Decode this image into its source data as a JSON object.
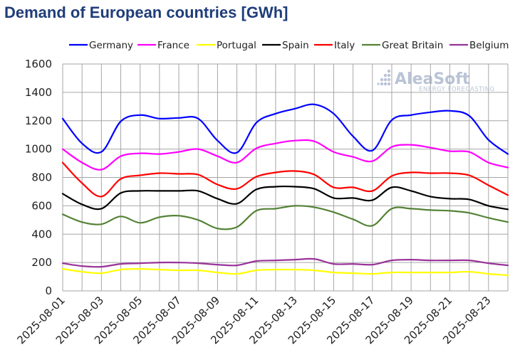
{
  "chart_data": {
    "type": "line",
    "title": "Demand of European countries [GWh]",
    "xlabel": "",
    "ylabel": "",
    "ylim": [
      0,
      1600
    ],
    "yticks": [
      "0",
      "200",
      "400",
      "600",
      "800",
      "1000",
      "1200",
      "1400",
      "1600"
    ],
    "xticks": [
      "2025-08-01",
      "2025-08-03",
      "2025-08-05",
      "2025-08-07",
      "2025-08-09",
      "2025-08-11",
      "2025-08-13",
      "2025-08-15",
      "2025-08-17",
      "2025-08-19",
      "2025-08-21",
      "2025-08-23"
    ],
    "x": [
      "2025-08-01",
      "2025-08-02",
      "2025-08-03",
      "2025-08-04",
      "2025-08-05",
      "2025-08-06",
      "2025-08-07",
      "2025-08-08",
      "2025-08-09",
      "2025-08-10",
      "2025-08-11",
      "2025-08-12",
      "2025-08-13",
      "2025-08-14",
      "2025-08-15",
      "2025-08-16",
      "2025-08-17",
      "2025-08-18",
      "2025-08-19",
      "2025-08-20",
      "2025-08-21",
      "2025-08-22",
      "2025-08-23",
      "2025-08-24"
    ],
    "grid": true,
    "legend_position": "top",
    "watermark": {
      "brand": "AleaSoft",
      "tagline": "ENERGY FORECASTING"
    },
    "series": [
      {
        "name": "Germany",
        "color": "#0000ff",
        "values": [
          1215,
          1040,
          980,
          1195,
          1240,
          1215,
          1220,
          1215,
          1060,
          975,
          1185,
          1250,
          1285,
          1315,
          1250,
          1090,
          990,
          1205,
          1240,
          1260,
          1270,
          1235,
          1065,
          965
        ]
      },
      {
        "name": "France",
        "color": "#ff00ff",
        "values": [
          1000,
          905,
          855,
          950,
          970,
          965,
          980,
          1000,
          950,
          905,
          1005,
          1040,
          1060,
          1055,
          980,
          945,
          915,
          1015,
          1030,
          1010,
          985,
          980,
          905,
          870
        ]
      },
      {
        "name": "Portugal",
        "color": "#ffff00",
        "values": [
          155,
          135,
          125,
          150,
          155,
          150,
          145,
          145,
          130,
          120,
          145,
          150,
          150,
          145,
          130,
          125,
          120,
          130,
          130,
          130,
          130,
          135,
          120,
          110
        ]
      },
      {
        "name": "Spain",
        "color": "#000000",
        "values": [
          685,
          610,
          580,
          690,
          705,
          705,
          705,
          705,
          650,
          615,
          715,
          735,
          735,
          720,
          655,
          655,
          640,
          730,
          705,
          665,
          650,
          645,
          600,
          575
        ]
      },
      {
        "name": "Italy",
        "color": "#ff0000",
        "values": [
          905,
          760,
          665,
          790,
          815,
          830,
          825,
          820,
          750,
          720,
          805,
          835,
          845,
          820,
          730,
          730,
          705,
          810,
          835,
          830,
          830,
          815,
          745,
          675
        ]
      },
      {
        "name": "Great Britain",
        "color": "#548235",
        "values": [
          540,
          485,
          470,
          525,
          480,
          520,
          530,
          500,
          440,
          450,
          565,
          580,
          600,
          590,
          555,
          505,
          460,
          580,
          580,
          570,
          565,
          550,
          515,
          485
        ]
      },
      {
        "name": "Belgium",
        "color": "#993399",
        "values": [
          195,
          175,
          170,
          190,
          195,
          200,
          200,
          195,
          185,
          180,
          210,
          215,
          220,
          225,
          190,
          190,
          185,
          215,
          220,
          215,
          215,
          215,
          195,
          180
        ]
      }
    ]
  }
}
